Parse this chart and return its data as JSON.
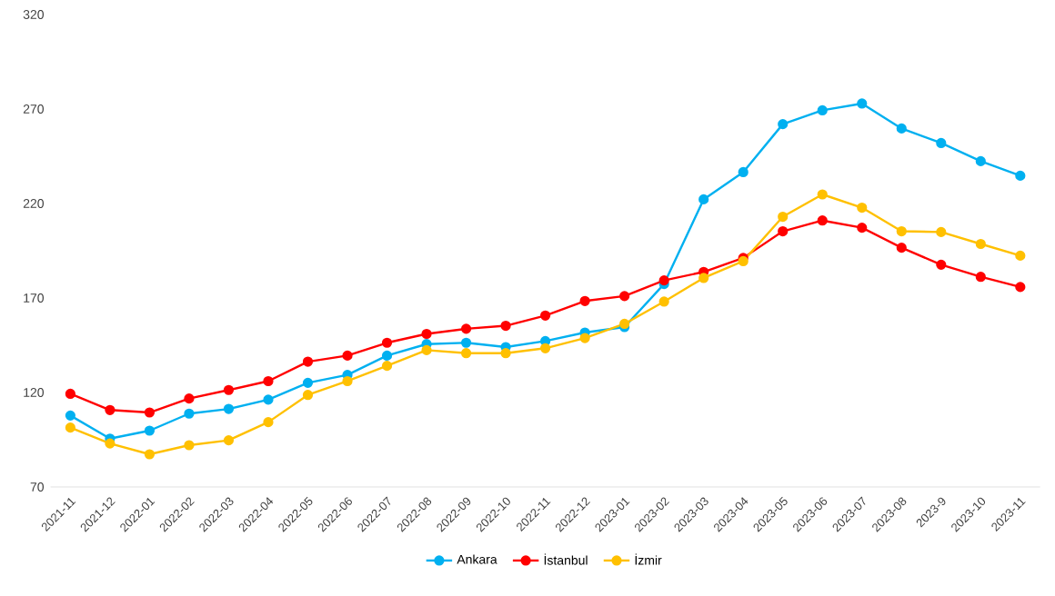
{
  "chart_data": {
    "type": "line",
    "categories": [
      "2021-11",
      "2021-12",
      "2022-01",
      "2022-02",
      "2022-03",
      "2022-04",
      "2022-05",
      "2022-06",
      "2022-07",
      "2022-08",
      "2022-09",
      "2022-10",
      "2022-11",
      "2022-12",
      "2023-01",
      "2023-02",
      "2023-03",
      "2023-04",
      "2023-05",
      "2023-06",
      "2023-07",
      "2023-08",
      "2023-9",
      "2023-10",
      "2023-11"
    ],
    "series": [
      {
        "name": "Ankara",
        "color": "#00b0f0",
        "values": [
          107.8,
          95.6,
          99.8,
          108.8,
          111.3,
          116.2,
          125.1,
          129.3,
          139.5,
          145.6,
          146.3,
          144,
          147.2,
          151.7,
          154.6,
          177.4,
          222.2,
          236.6,
          262,
          269.3,
          272.9,
          259.7,
          252,
          242.4,
          234.7
        ]
      },
      {
        "name": "İstanbul",
        "color": "#ff0000",
        "values": [
          119.3,
          110.7,
          109.4,
          116.8,
          121.3,
          126,
          136.3,
          139.5,
          146.3,
          151,
          153.7,
          155.3,
          160.7,
          168.4,
          171,
          179.3,
          183.8,
          191.2,
          205.3,
          211,
          207.2,
          196.6,
          187.6,
          181.2,
          175.8
        ]
      },
      {
        "name": "İzmir",
        "color": "#ffc000",
        "values": [
          101.4,
          93,
          87.3,
          92.1,
          94.7,
          104.3,
          118.7,
          126,
          134.1,
          142.4,
          140.8,
          140.8,
          143.4,
          148.8,
          156.3,
          168.1,
          180.6,
          189.5,
          213,
          224.8,
          217.8,
          205.3,
          204.9,
          198.6,
          192.4
        ]
      }
    ],
    "ylim": [
      70,
      320
    ],
    "yticks": [
      70,
      120,
      170,
      220,
      270,
      320
    ],
    "grid": false,
    "legend": "bottom",
    "marker": "circle",
    "line_style": "solid"
  }
}
